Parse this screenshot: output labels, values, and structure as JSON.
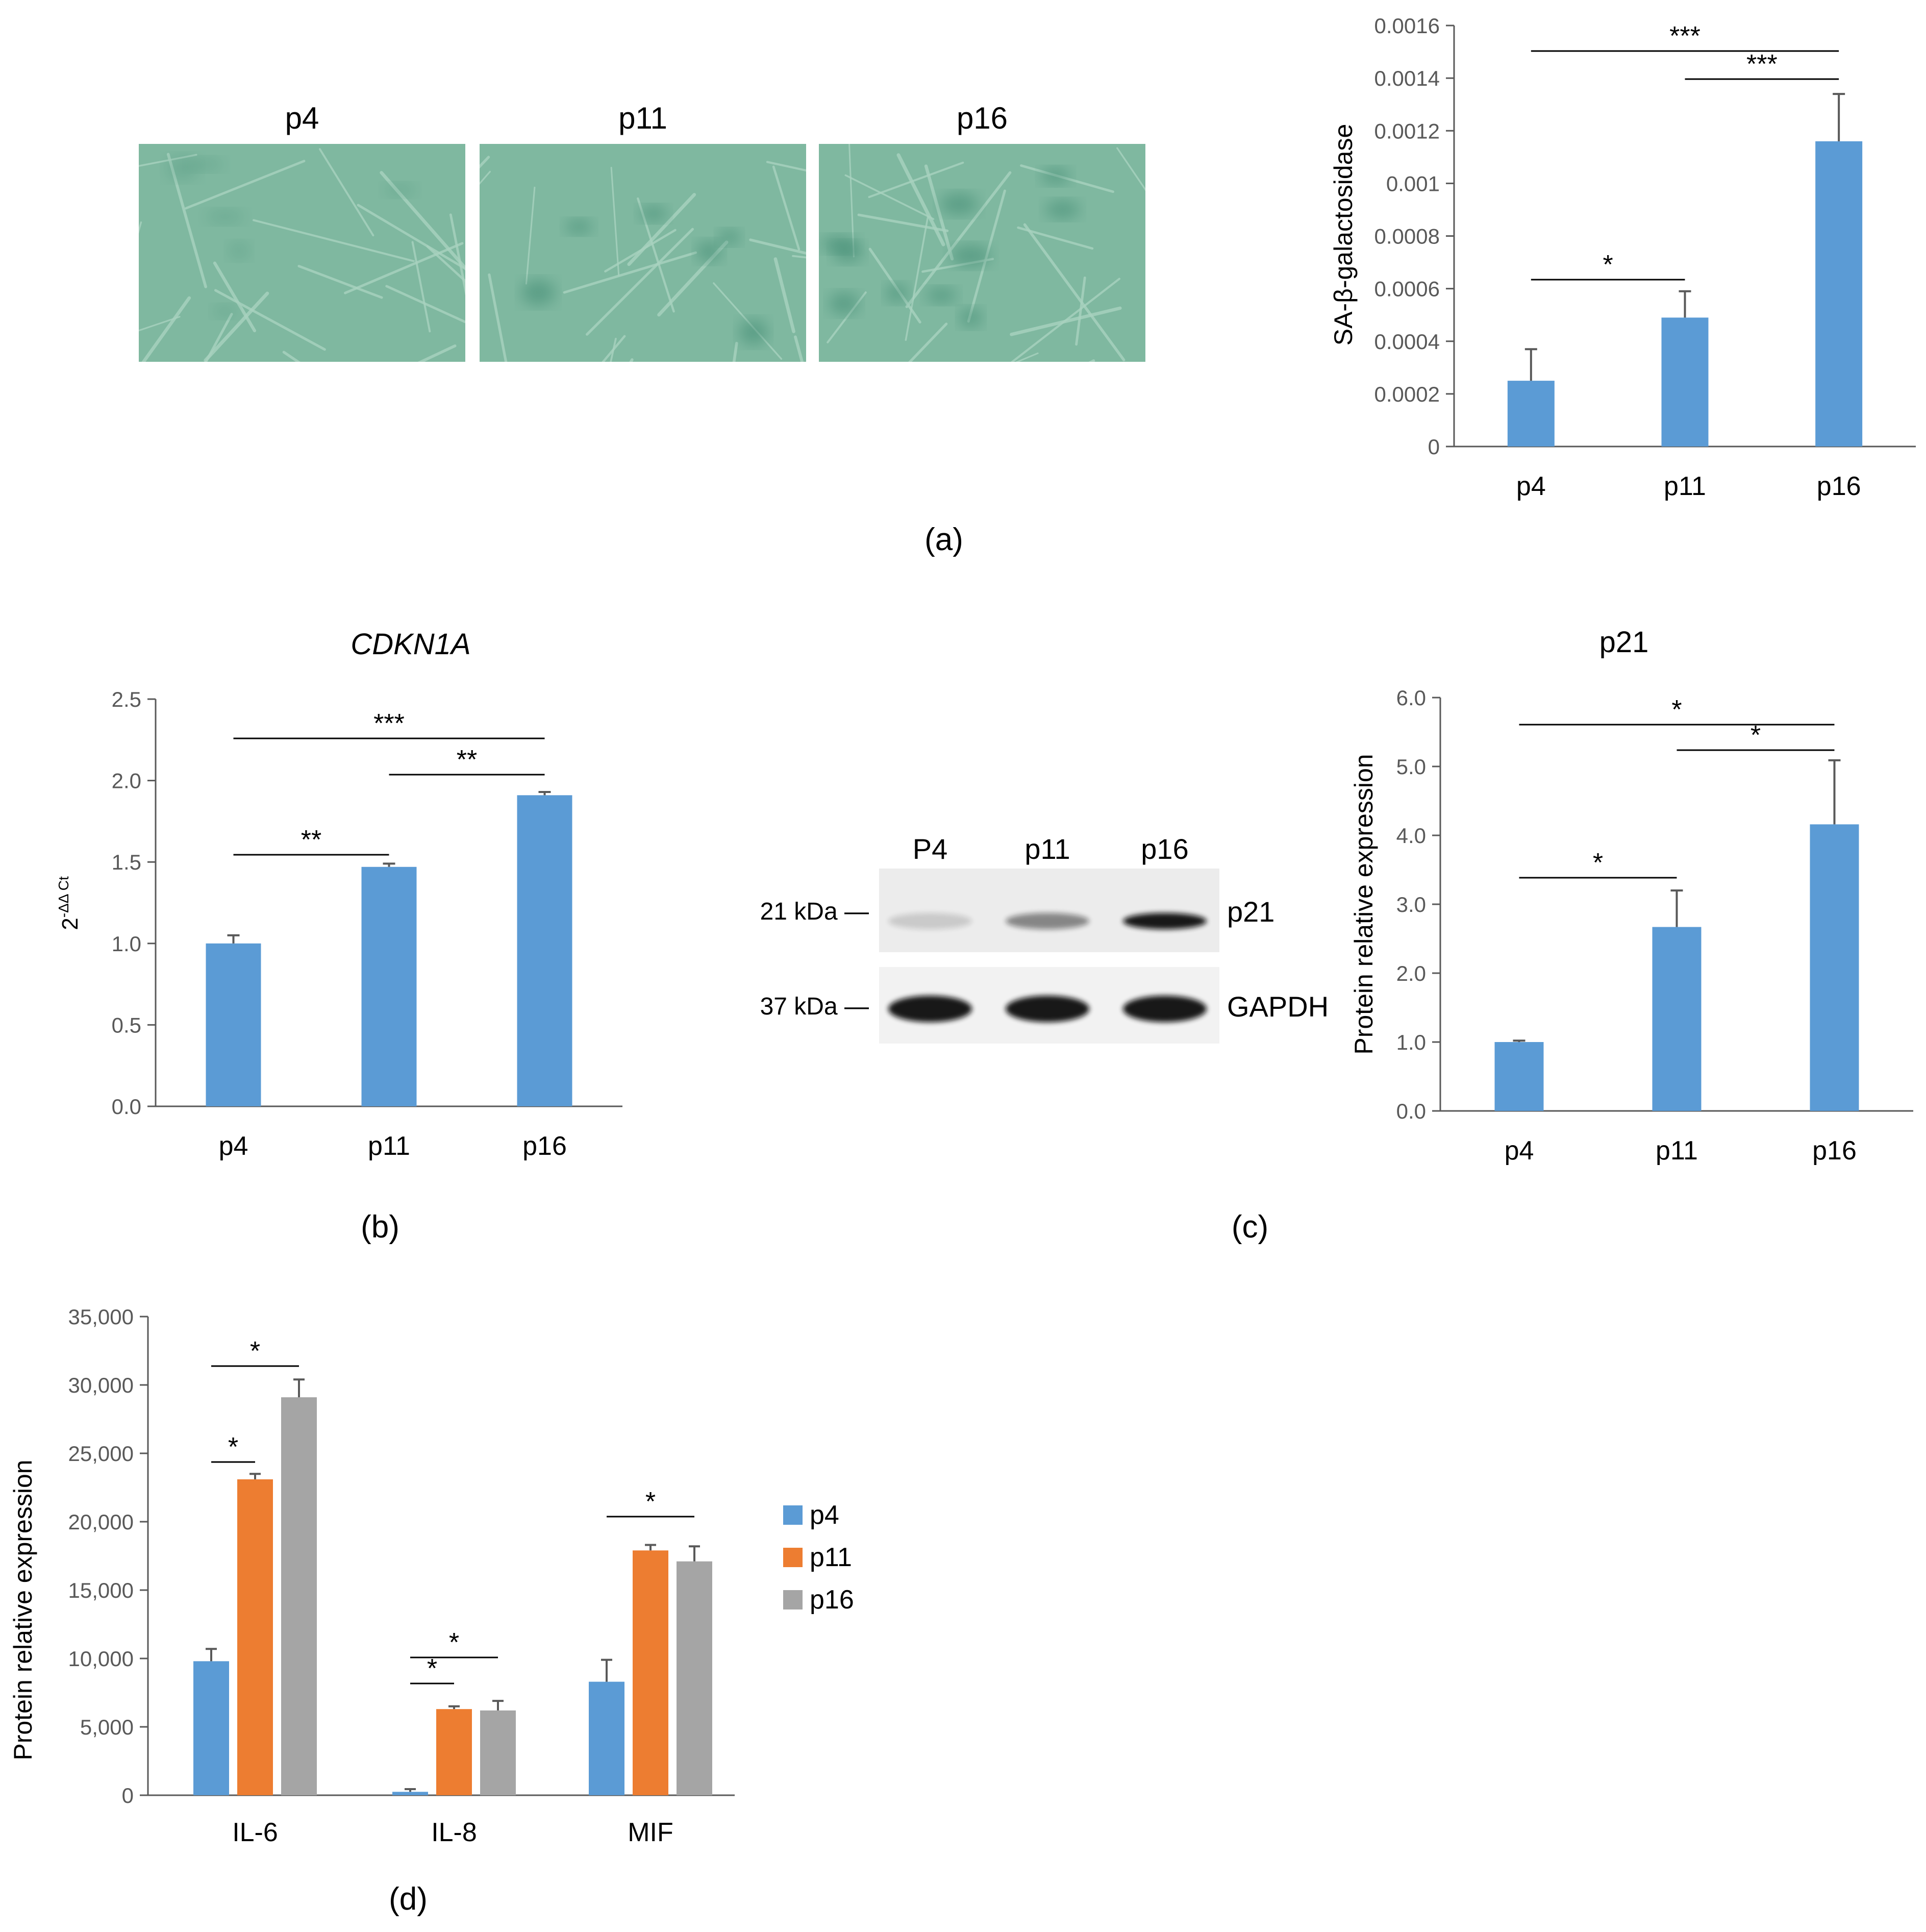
{
  "colors": {
    "blue": "#5b9bd5",
    "orange": "#ed7d31",
    "gray": "#a5a5a5",
    "axis": "#595959",
    "micro_bg": "#7fb8a0",
    "micro_cell": "#3f8a72"
  },
  "panel_a": {
    "panel_label": "(a)",
    "micrographs": [
      {
        "label": "p4",
        "cells": 6
      },
      {
        "label": "p11",
        "cells": 6
      },
      {
        "label": "p16",
        "cells": 10
      }
    ]
  },
  "panel_b": {
    "panel_label": "(b)"
  },
  "panel_c": {
    "panel_label": "(c)",
    "western_blot": {
      "lanes": [
        "P4",
        "p11",
        "p16"
      ],
      "rows": [
        {
          "marker": "21 kDa —",
          "protein": "p21",
          "band_intensity": [
            0.15,
            0.45,
            0.95
          ]
        },
        {
          "marker": "37 kDa —",
          "protein": "GAPDH",
          "band_intensity": [
            0.95,
            0.95,
            0.95
          ]
        }
      ]
    }
  },
  "panel_d": {
    "panel_label": "(d)"
  },
  "chart_data": [
    {
      "id": "sa_beta_gal",
      "type": "bar",
      "title": "",
      "xlabel": "",
      "ylabel": "SA-β-galactosidase",
      "categories": [
        "p4",
        "p11",
        "p16"
      ],
      "values": [
        0.00025,
        0.00049,
        0.00116
      ],
      "errors": [
        0.00012,
        0.0001,
        0.00018
      ],
      "ylim": [
        0,
        0.0016
      ],
      "yticks": [
        "0",
        "0.0002",
        "0.0004",
        "0.0006",
        "0.0008",
        "0.001",
        "0.0012",
        "0.0014",
        "0.0016"
      ],
      "significance": [
        {
          "from": 0,
          "to": 1,
          "label": "*"
        },
        {
          "from": 0,
          "to": 2,
          "label": "***"
        },
        {
          "from": 1,
          "to": 2,
          "label": "***"
        }
      ]
    },
    {
      "id": "cdkn1a",
      "type": "bar",
      "title": "CDKN1A",
      "xlabel": "",
      "ylabel": "2-ΔΔCt",
      "ylabel_base": "2",
      "ylabel_sup": "-ΔΔ Ct",
      "categories": [
        "p4",
        "p11",
        "p16"
      ],
      "values": [
        1.0,
        1.47,
        1.91
      ],
      "errors": [
        0.05,
        0.02,
        0.02
      ],
      "ylim": [
        0,
        2.5
      ],
      "yticks": [
        "0.0",
        "0.5",
        "1.0",
        "1.5",
        "2.0",
        "2.5"
      ],
      "significance": [
        {
          "from": 0,
          "to": 1,
          "label": "**"
        },
        {
          "from": 0,
          "to": 2,
          "label": "***"
        },
        {
          "from": 1,
          "to": 2,
          "label": "**"
        }
      ]
    },
    {
      "id": "p21_protein",
      "type": "bar",
      "title": "p21",
      "xlabel": "",
      "ylabel": "Protein relative expression",
      "categories": [
        "p4",
        "p11",
        "p16"
      ],
      "values": [
        1.0,
        2.67,
        4.16
      ],
      "errors": [
        0.02,
        0.53,
        0.93
      ],
      "ylim": [
        0,
        6
      ],
      "yticks": [
        "0.0",
        "1.0",
        "2.0",
        "3.0",
        "4.0",
        "5.0",
        "6.0"
      ],
      "significance": [
        {
          "from": 0,
          "to": 1,
          "label": "*"
        },
        {
          "from": 0,
          "to": 2,
          "label": "*"
        },
        {
          "from": 1,
          "to": 2,
          "label": "*"
        }
      ]
    },
    {
      "id": "cytokines",
      "type": "bar",
      "title": "",
      "xlabel": "",
      "ylabel": "Protein relative expression",
      "categories": [
        "IL-6",
        "IL-8",
        "MIF"
      ],
      "series": [
        {
          "name": "p4",
          "values": [
            9800,
            250,
            8300
          ],
          "errors": [
            900,
            200,
            1600
          ]
        },
        {
          "name": "p11",
          "values": [
            23100,
            6300,
            17900
          ],
          "errors": [
            400,
            200,
            400
          ]
        },
        {
          "name": "p16",
          "values": [
            29100,
            6200,
            17100
          ],
          "errors": [
            1300,
            700,
            1100
          ]
        }
      ],
      "ylim": [
        0,
        35000
      ],
      "yticks": [
        "0",
        "5,000",
        "10,000",
        "15,000",
        "20,000",
        "25,000",
        "30,000",
        "35,000"
      ],
      "legend_position": "right",
      "significance": [
        {
          "cat": 0,
          "from": 0,
          "to": 1,
          "label": "*"
        },
        {
          "cat": 0,
          "from": 0,
          "to": 2,
          "label": "*"
        },
        {
          "cat": 1,
          "from": 0,
          "to": 1,
          "label": "*"
        },
        {
          "cat": 1,
          "from": 0,
          "to": 2,
          "label": "*"
        },
        {
          "cat": 2,
          "from": 0,
          "to": 2,
          "label": "*"
        }
      ]
    }
  ]
}
